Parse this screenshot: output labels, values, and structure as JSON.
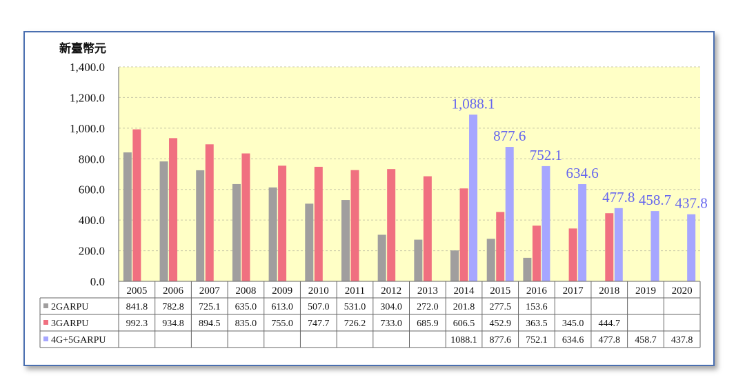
{
  "chart_data": {
    "type": "bar",
    "ylabel": "新臺幣元",
    "ylim": [
      0,
      1400
    ],
    "yticks": [
      "0.0",
      "200.0",
      "400.0",
      "600.0",
      "800.0",
      "1,000.0",
      "1,200.0",
      "1,400.0"
    ],
    "categories": [
      "2005",
      "2006",
      "2007",
      "2008",
      "2009",
      "2010",
      "2011",
      "2012",
      "2013",
      "2014",
      "2015",
      "2016",
      "2017",
      "2018",
      "2019",
      "2020"
    ],
    "series": [
      {
        "name": "2GARPU",
        "color": "#a09e9e",
        "values": [
          841.8,
          782.8,
          725.1,
          635.0,
          613.0,
          507.0,
          531.0,
          304.0,
          272.0,
          201.8,
          277.5,
          153.6,
          null,
          null,
          null,
          null
        ]
      },
      {
        "name": "3GARPU",
        "color": "#f07080",
        "values": [
          992.3,
          934.8,
          894.5,
          835.0,
          755.0,
          747.7,
          726.2,
          733.0,
          685.9,
          606.5,
          452.9,
          363.5,
          345.0,
          444.7,
          null,
          null
        ]
      },
      {
        "name": "4G+5GARPU",
        "color": "#a6a6ff",
        "values": [
          null,
          null,
          null,
          null,
          null,
          null,
          null,
          null,
          null,
          1088.1,
          877.6,
          752.1,
          634.6,
          477.8,
          458.7,
          437.8
        ]
      }
    ],
    "table": [
      [
        "841.8",
        "782.8",
        "725.1",
        "635.0",
        "613.0",
        "507.0",
        "531.0",
        "304.0",
        "272.0",
        "201.8",
        "277.5",
        "153.6",
        "",
        "",
        "",
        ""
      ],
      [
        "992.3",
        "934.8",
        "894.5",
        "835.0",
        "755.0",
        "747.7",
        "726.2",
        "733.0",
        "685.9",
        "606.5",
        "452.9",
        "363.5",
        "345.0",
        "444.7",
        "",
        ""
      ],
      [
        "",
        "",
        "",
        "",
        "",
        "",
        "",
        "",
        "",
        "1088.1",
        "877.6",
        "752.1",
        "634.6",
        "477.8",
        "458.7",
        "437.8"
      ]
    ],
    "data_labels": [
      "1,088.1",
      "877.6",
      "752.1",
      "634.6",
      "477.8",
      "458.7",
      "437.8"
    ],
    "plot_background": "#ffffc6",
    "grid": true,
    "legend": "table-left"
  }
}
